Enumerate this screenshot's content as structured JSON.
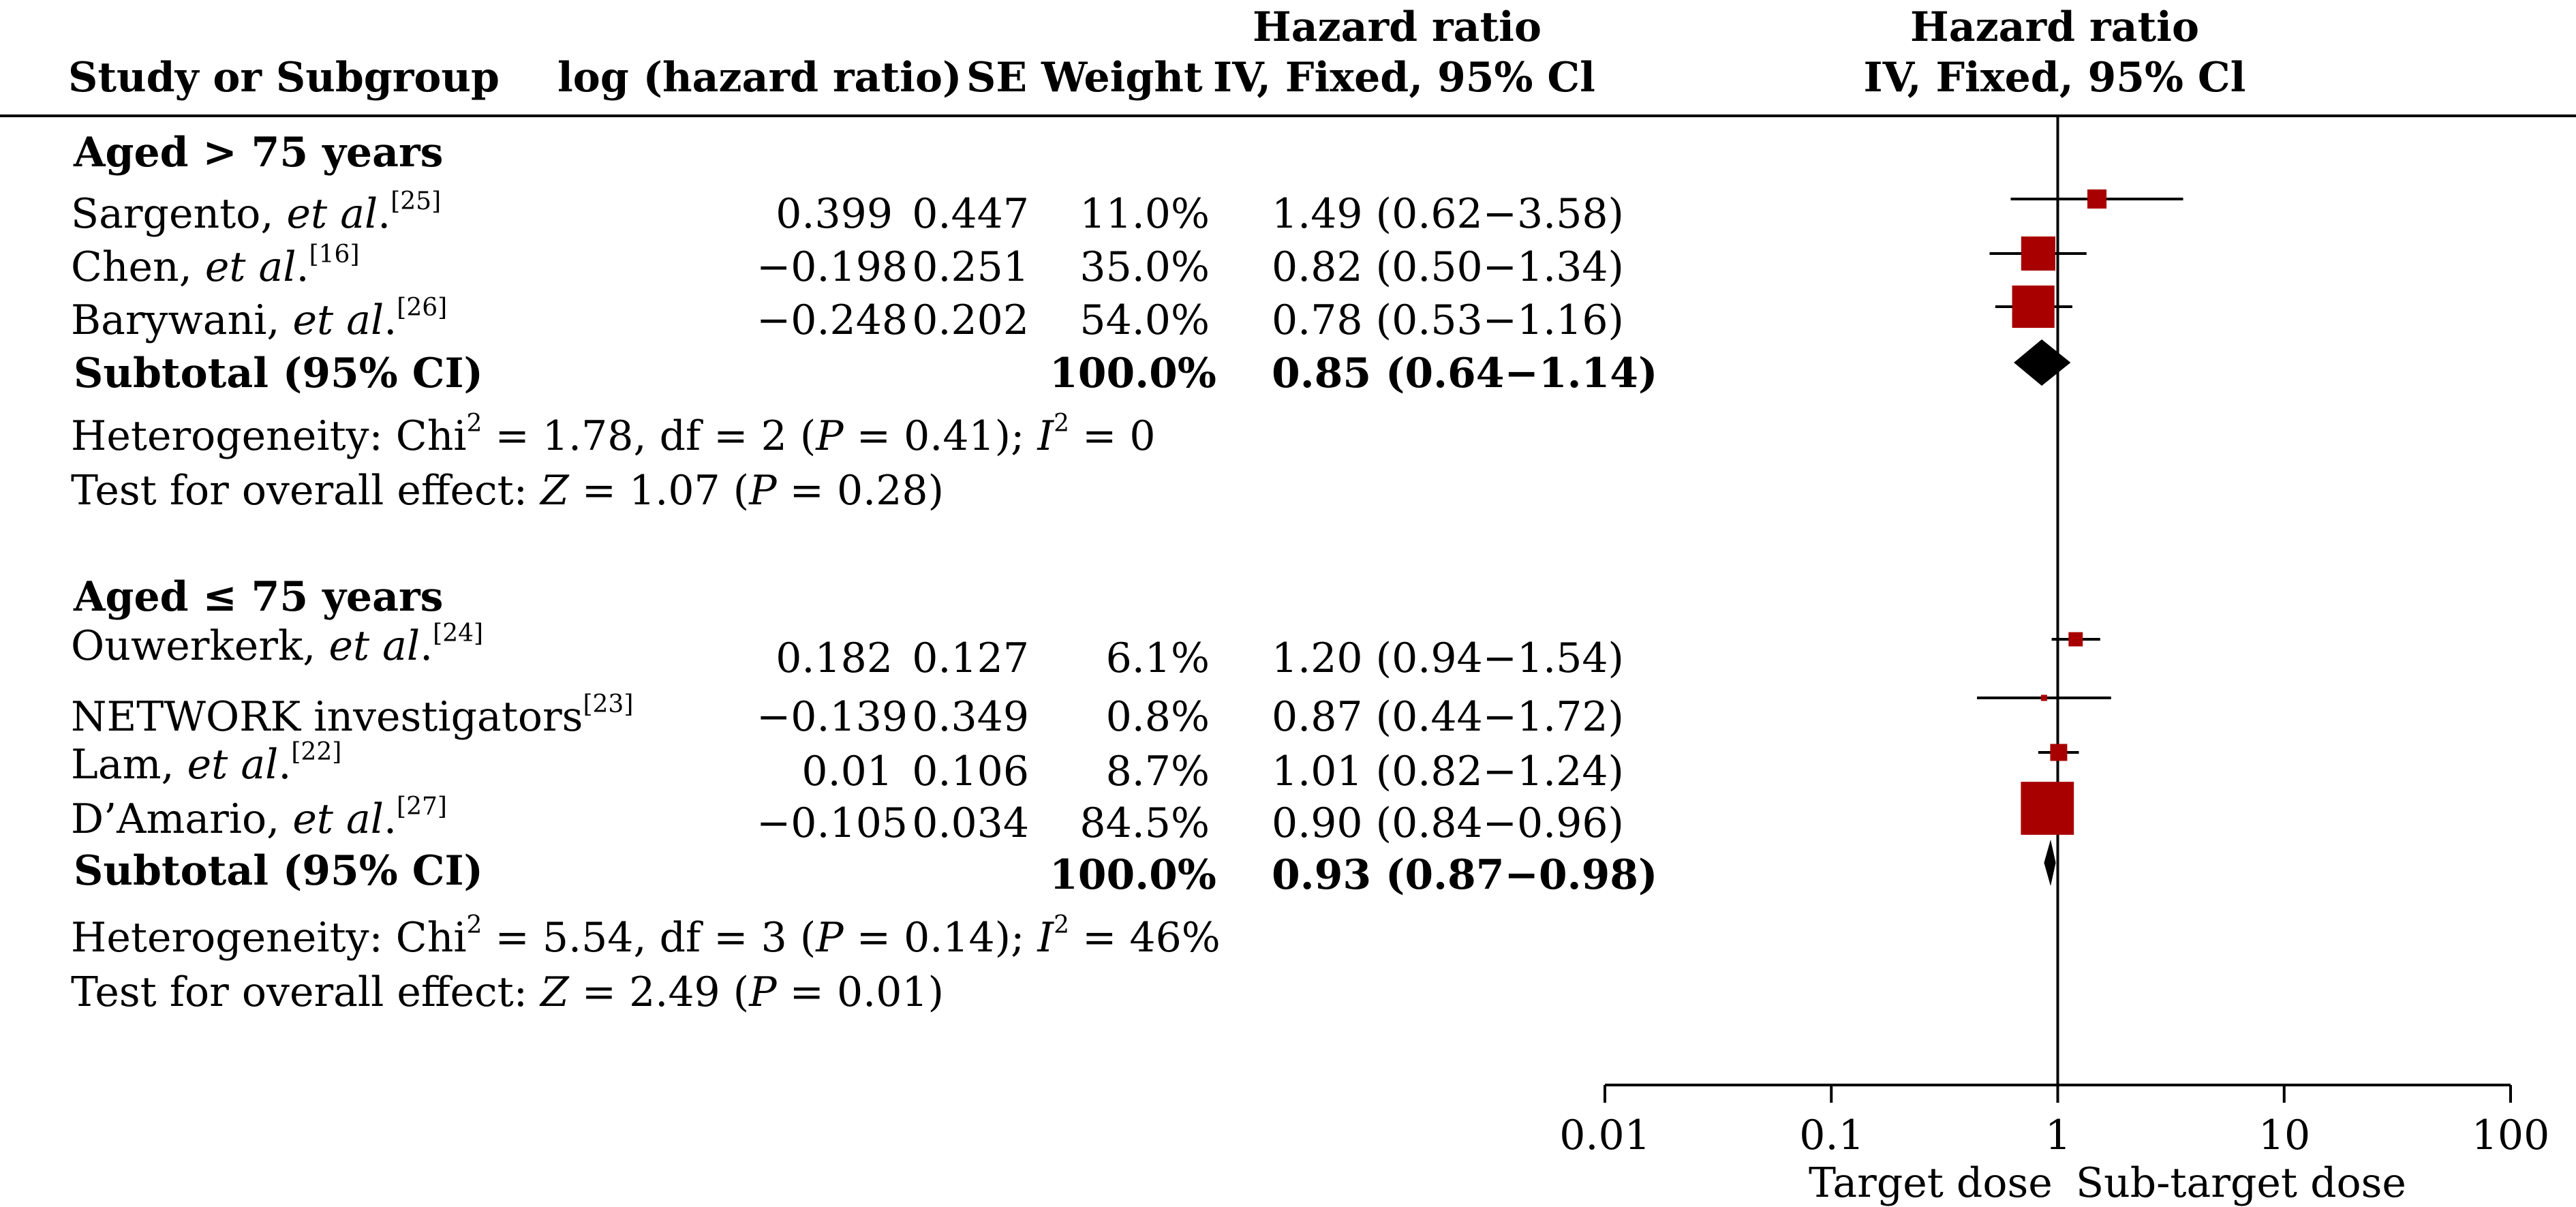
{
  "header": {
    "study": "Study or Subgroup",
    "loghr": "log (hazard ratio)",
    "se_weight": "SE Weight",
    "hr_text_line1": "Hazard ratio",
    "hr_text_line2": "IV, Fixed, 95% Cl",
    "hr_plot_line1": "Hazard ratio",
    "hr_plot_line2": "IV, Fixed, 95% Cl"
  },
  "groups": [
    {
      "title": "Aged > 75 years",
      "studies": [
        {
          "name": "Sargento, ",
          "etal": "et al",
          "dot": ".",
          "ref": "[25]",
          "loghr": "0.399",
          "se": "0.447",
          "weight": "11.0%",
          "hr_text": "1.49 (0.62−3.58)"
        },
        {
          "name": "Chen, ",
          "etal": "et al",
          "dot": ".",
          "ref": "[16]",
          "loghr": "−0.198",
          "se": "0.251",
          "weight": "35.0%",
          "hr_text": "0.82 (0.50−1.34)"
        },
        {
          "name": "Barywani, ",
          "etal": "et al",
          "dot": ".",
          "ref": "[26]",
          "loghr": "−0.248",
          "se": "0.202",
          "weight": "54.0%",
          "hr_text": "0.78 (0.53−1.16)"
        }
      ],
      "subtotal_label": "Subtotal (95% CI)",
      "subtotal_weight": "100.0%",
      "subtotal_hr": "0.85 (0.64−1.14)",
      "heterogeneity": {
        "a": "Heterogeneity: Chi",
        "sup1": "2",
        "b": " = 1.78, df = 2 (",
        "p": "P",
        "c": " = 0.41); ",
        "i": "I",
        "sup2": "2",
        "d": " = 0"
      },
      "overall": {
        "a": "Test for overall effect: ",
        "z": "Z",
        "b": " = 1.07 (",
        "p": "P",
        "c": " = 0.28)"
      }
    },
    {
      "title": "Aged ≤ 75 years",
      "studies": [
        {
          "name": "Ouwerkerk, ",
          "etal": "et al",
          "dot": ".",
          "ref": "[24]",
          "loghr": "0.182",
          "se": "0.127",
          "weight": "6.1%",
          "hr_text": "1.20 (0.94−1.54)"
        },
        {
          "name": "NETWORK investigators",
          "etal": "",
          "dot": "",
          "ref": "[23]",
          "loghr": "−0.139",
          "se": "0.349",
          "weight": "0.8%",
          "hr_text": "0.87 (0.44−1.72)"
        },
        {
          "name": "Lam, ",
          "etal": "et al",
          "dot": ".",
          "ref": "[22]",
          "loghr": "0.01",
          "se": "0.106",
          "weight": "8.7%",
          "hr_text": "1.01 (0.82−1.24)"
        },
        {
          "name": "D’Amario, ",
          "etal": "et al",
          "dot": ".",
          "ref": "[27]",
          "loghr": "−0.105",
          "se": "0.034",
          "weight": "84.5%",
          "hr_text": "0.90 (0.84−0.96)"
        }
      ],
      "subtotal_label": "Subtotal (95% CI)",
      "subtotal_weight": "100.0%",
      "subtotal_hr": "0.93 (0.87−0.98)",
      "heterogeneity": {
        "a": "Heterogeneity: Chi",
        "sup1": "2",
        "b": " = 5.54, df = 3 (",
        "p": "P",
        "c": " = 0.14); ",
        "i": "I",
        "sup2": "2",
        "d": " = 46%"
      },
      "overall": {
        "a": "Test for overall effect: ",
        "z": "Z",
        "b": " = 2.49 (",
        "p": "P",
        "c": " = 0.01)"
      }
    }
  ],
  "axis": {
    "ticks": [
      "0.01",
      "0.1",
      "1",
      "10",
      "100"
    ],
    "left_label": "Target dose",
    "right_label": "Sub-target dose"
  },
  "colors": {
    "study_marker": "#a80000",
    "subtotal_marker": "#000000",
    "lines": "#000000"
  },
  "chart_data": {
    "type": "forest",
    "scale": "log",
    "xlim": [
      0.01,
      100
    ],
    "x_ticks": [
      0.01,
      0.1,
      1,
      10,
      100
    ],
    "reference_line": 1,
    "studies": [
      {
        "group": 0,
        "hr": 1.49,
        "lo": 0.62,
        "hi": 3.58,
        "weight": 11.0
      },
      {
        "group": 0,
        "hr": 0.82,
        "lo": 0.5,
        "hi": 1.34,
        "weight": 35.0
      },
      {
        "group": 0,
        "hr": 0.78,
        "lo": 0.53,
        "hi": 1.16,
        "weight": 54.0
      },
      {
        "group": 1,
        "hr": 1.2,
        "lo": 0.94,
        "hi": 1.54,
        "weight": 6.1
      },
      {
        "group": 1,
        "hr": 0.87,
        "lo": 0.44,
        "hi": 1.72,
        "weight": 0.8
      },
      {
        "group": 1,
        "hr": 1.01,
        "lo": 0.82,
        "hi": 1.24,
        "weight": 8.7
      },
      {
        "group": 1,
        "hr": 0.9,
        "lo": 0.84,
        "hi": 0.96,
        "weight": 84.5
      }
    ],
    "subtotals": [
      {
        "group": 0,
        "hr": 0.85,
        "lo": 0.64,
        "hi": 1.14
      },
      {
        "group": 1,
        "hr": 0.93,
        "lo": 0.87,
        "hi": 0.98
      }
    ]
  }
}
